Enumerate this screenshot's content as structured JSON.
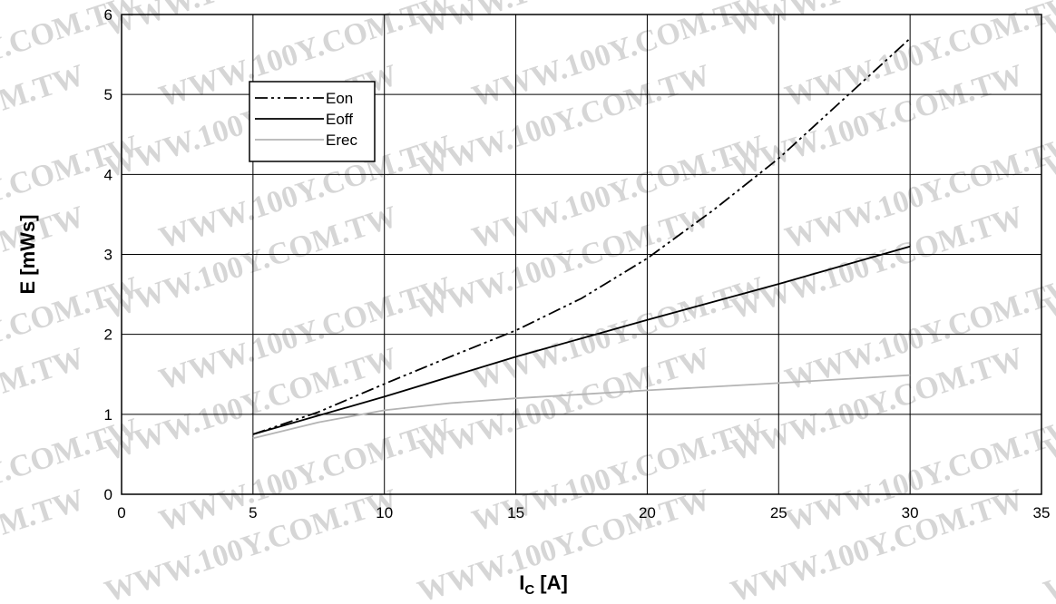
{
  "chart_data": {
    "type": "line",
    "xlabel": {
      "main": "I",
      "sub": "C",
      "unit": " [A]"
    },
    "ylabel": "E [mWs]",
    "xlim": [
      0,
      35
    ],
    "ylim": [
      0,
      6
    ],
    "xticks": [
      0,
      5,
      10,
      15,
      20,
      25,
      30,
      35
    ],
    "yticks": [
      0,
      1,
      2,
      3,
      4,
      5,
      6
    ],
    "grid": true,
    "legend_position": "top-left",
    "series": [
      {
        "name": "Eon",
        "style": "dash-dot-dot",
        "color": "#000000",
        "x": [
          5,
          7.5,
          10,
          12.5,
          15,
          17.5,
          20,
          22.5,
          25,
          27.5,
          30
        ],
        "y": [
          0.75,
          1.03,
          1.38,
          1.72,
          2.05,
          2.45,
          2.95,
          3.55,
          4.2,
          4.95,
          5.7
        ]
      },
      {
        "name": "Eoff",
        "style": "solid",
        "color": "#000000",
        "x": [
          5,
          10,
          15,
          20,
          25,
          30
        ],
        "y": [
          0.75,
          1.22,
          1.72,
          2.18,
          2.63,
          3.1
        ]
      },
      {
        "name": "Erec",
        "style": "solid",
        "color": "#b4b4b4",
        "x": [
          5,
          7.5,
          10,
          12.5,
          15,
          20,
          25,
          30
        ],
        "y": [
          0.7,
          0.9,
          1.05,
          1.14,
          1.2,
          1.3,
          1.39,
          1.49
        ]
      }
    ]
  },
  "watermark": "WWW.100Y.COM.TW"
}
